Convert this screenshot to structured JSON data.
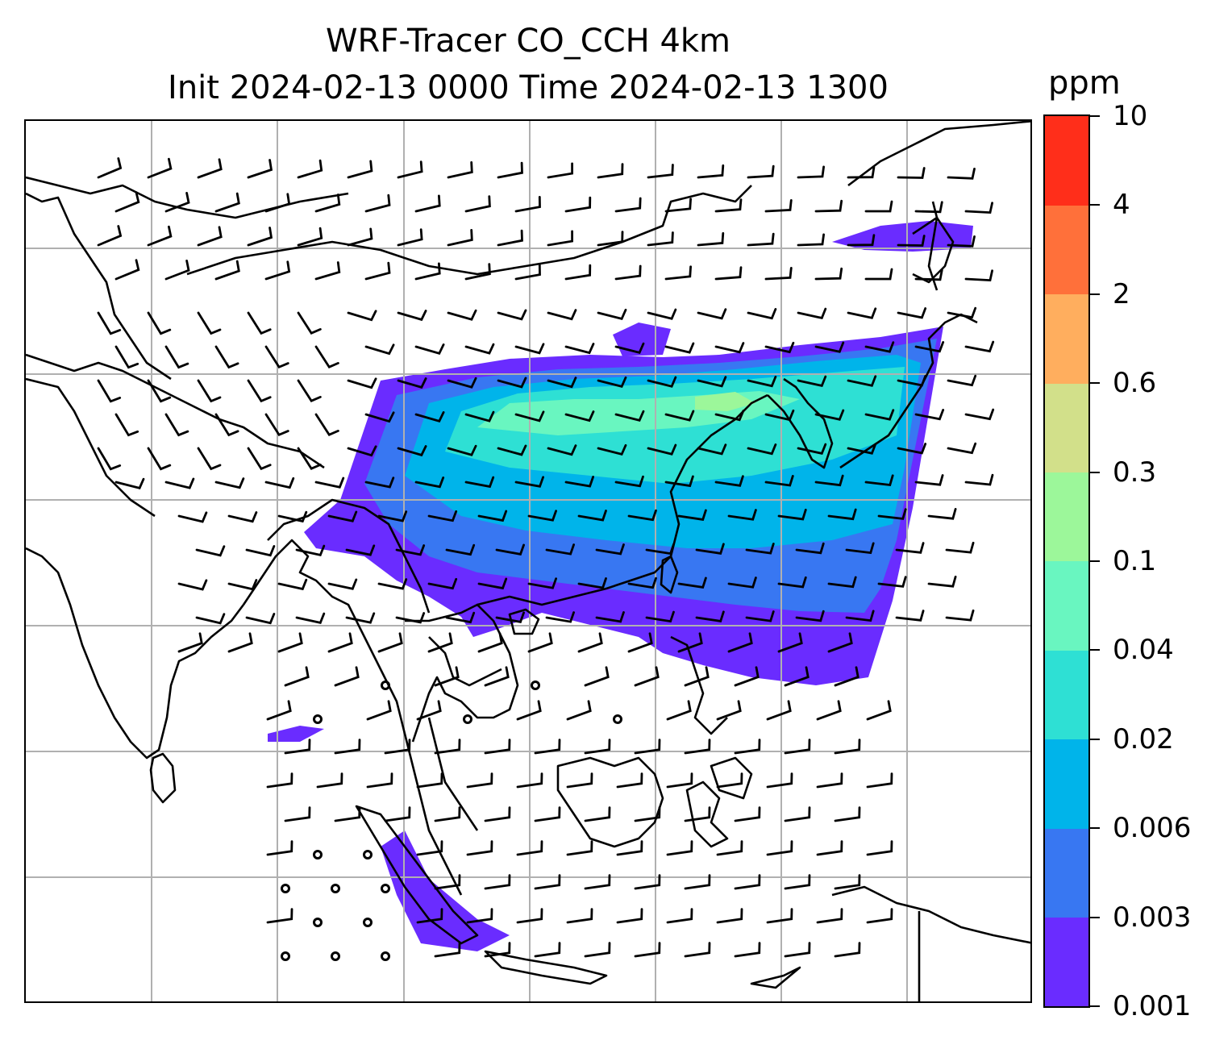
{
  "title": {
    "line1": "WRF-Tracer CO_CCH 4km",
    "line2": "Init 2024-02-13 0000 Time 2024-02-13 1300"
  },
  "colorbar": {
    "unit": "ppm",
    "ticks": [
      "0.001",
      "0.003",
      "0.006",
      "0.02",
      "0.04",
      "0.1",
      "0.3",
      "0.6",
      "2",
      "4",
      "10"
    ],
    "colors": [
      "#6a2cff",
      "#3877f2",
      "#00b4ea",
      "#2ee0d4",
      "#69f6c0",
      "#9cf79a",
      "#d2e08a",
      "#ffae5e",
      "#ff703a",
      "#ff2e1a"
    ]
  },
  "map": {
    "gridlines": "on",
    "features": [
      "coastlines",
      "country-borders",
      "wind-barbs",
      "tracer-concentration"
    ]
  }
}
